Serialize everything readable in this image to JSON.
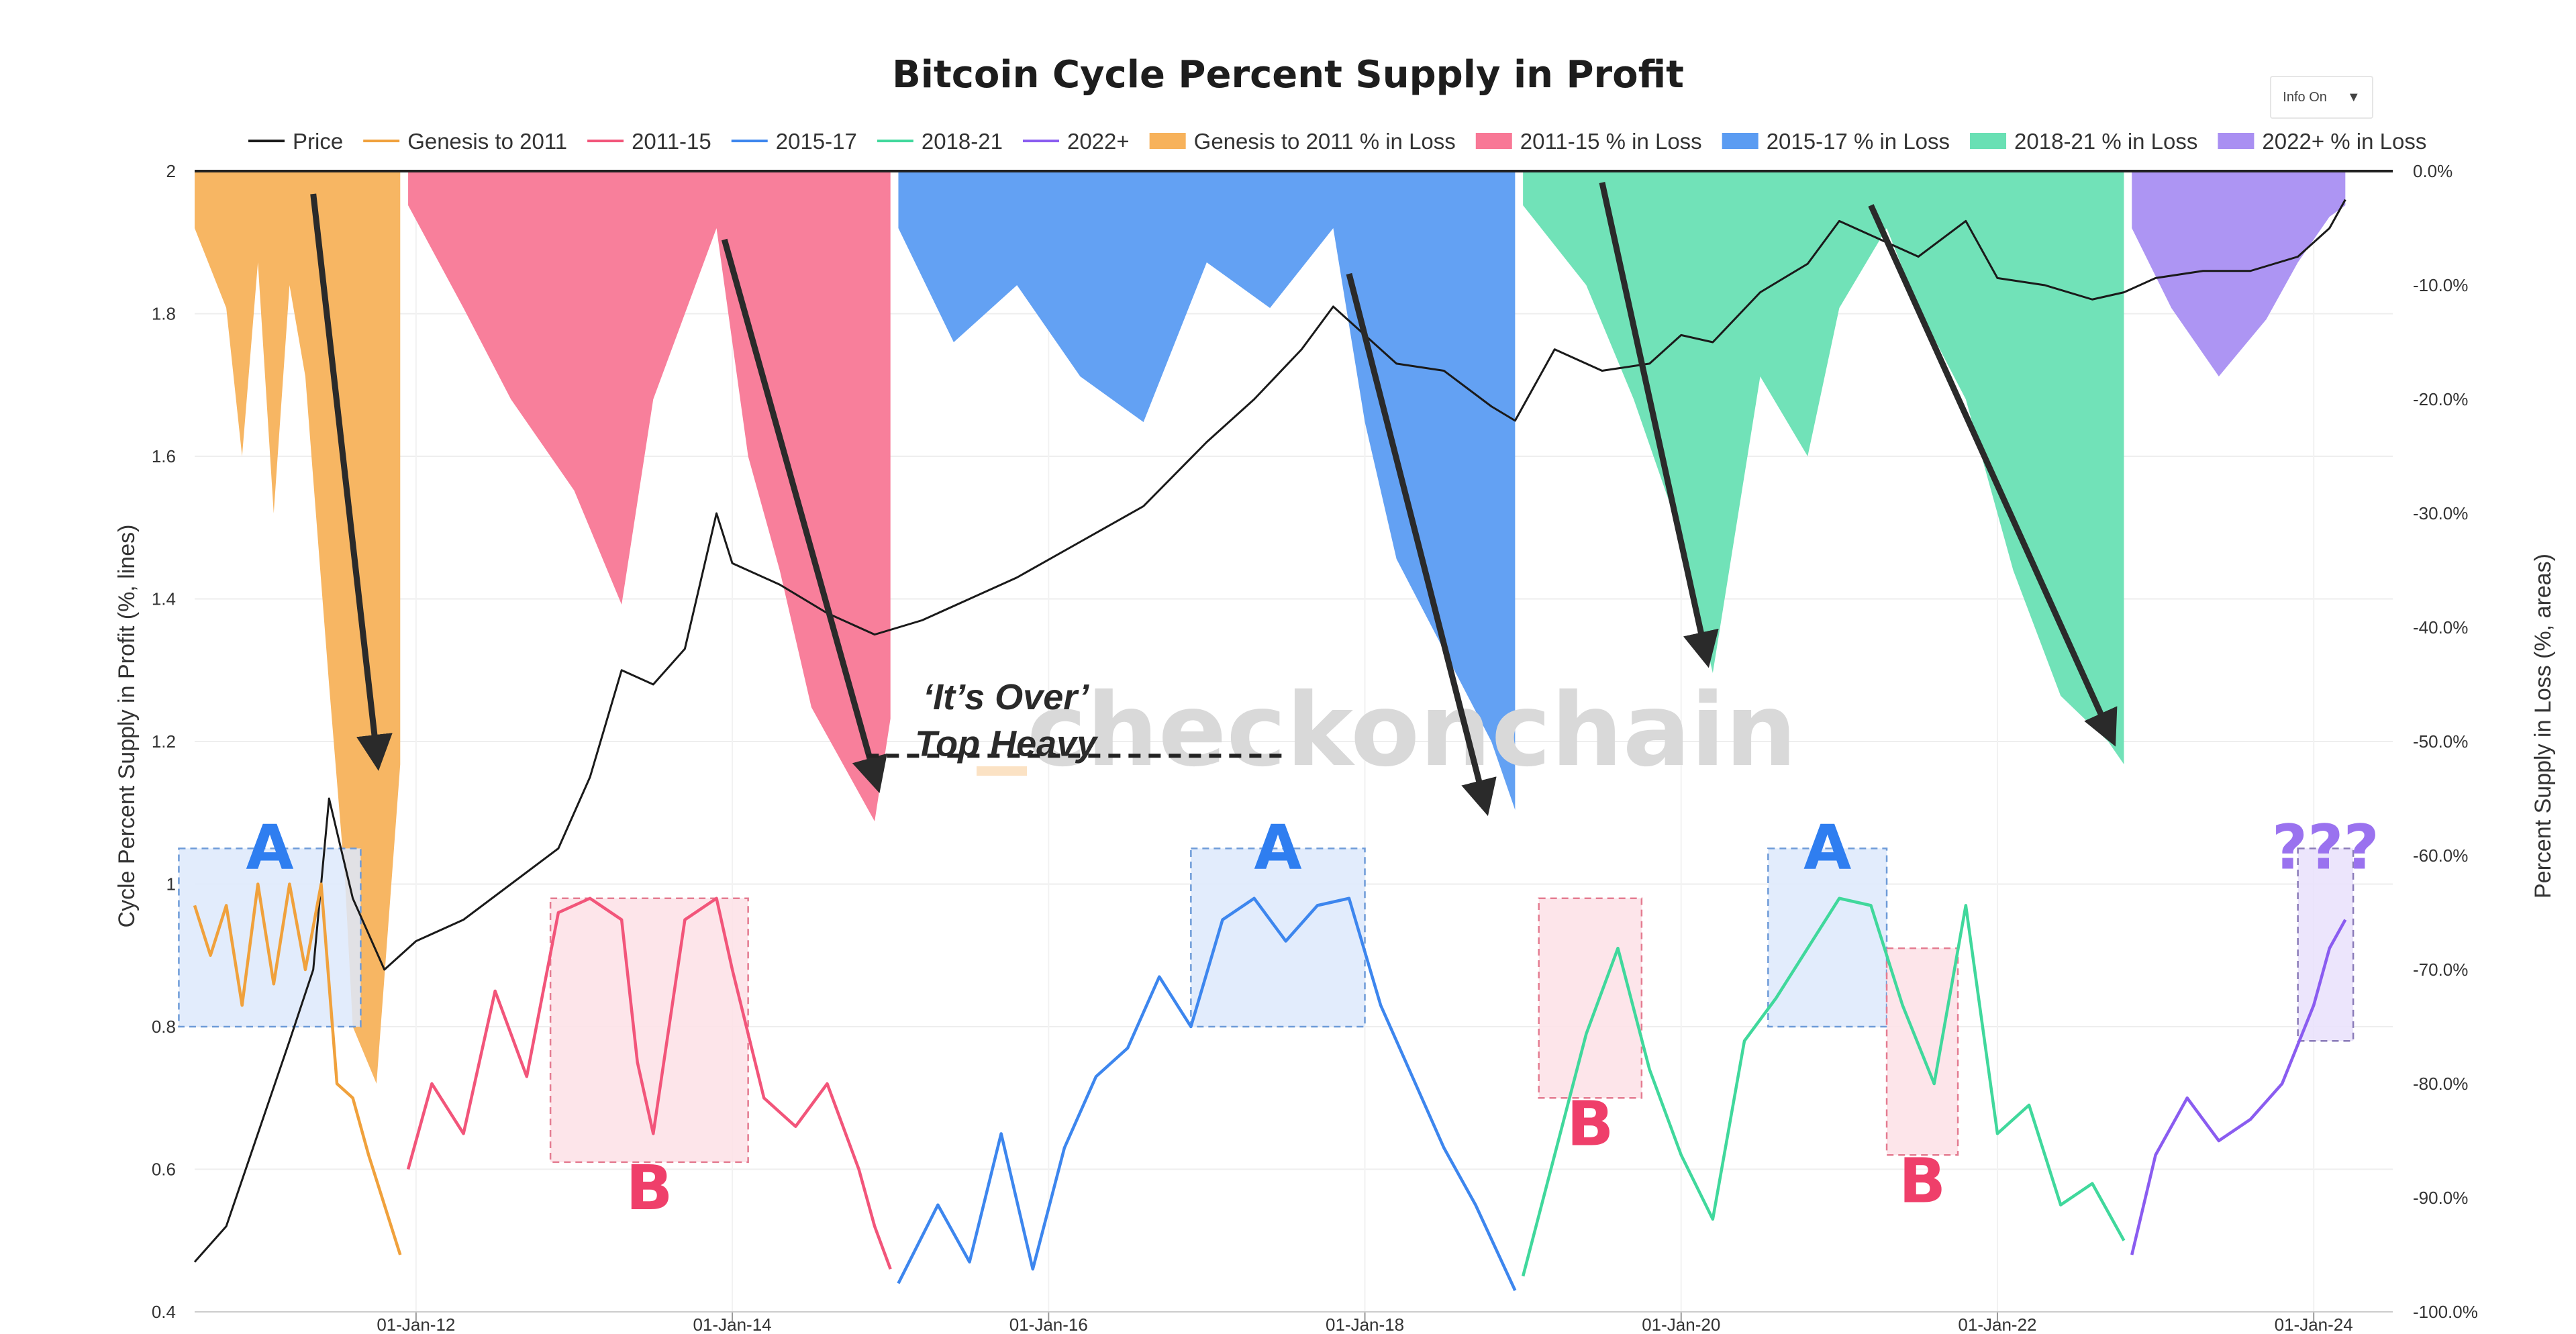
{
  "chart_data": {
    "type": "line",
    "title": "Bitcoin Cycle Percent Supply in Profit",
    "y_left_label": "Cycle Percent Supply in Profit (%, lines)",
    "y_right_label": "Percent Supply in Loss (%, areas)",
    "y_left_ticks": [
      "0.4",
      "0.6",
      "0.8",
      "1",
      "1.2",
      "1.4",
      "1.6",
      "1.8",
      "2"
    ],
    "y_right_ticks": [
      "0.0%",
      "-10.0%",
      "-20.0%",
      "-30.0%",
      "-40.0%",
      "-50.0%",
      "-60.0%",
      "-70.0%",
      "-80.0%",
      "-90.0%",
      "-100.0%"
    ],
    "x_ticks": [
      "01-Jan-12",
      "01-Jan-14",
      "01-Jan-16",
      "01-Jan-18",
      "01-Jan-20",
      "01-Jan-22",
      "01-Jan-24"
    ],
    "x_tick_years": [
      2012,
      2014,
      2016,
      2018,
      2020,
      2022,
      2024
    ],
    "x_range": [
      2010.6,
      2024.5
    ],
    "y_left_range": [
      0.4,
      2.0
    ],
    "y_right_range": [
      -100,
      0
    ],
    "grid": true,
    "legend_position": "top",
    "legend": [
      {
        "label": "Price",
        "type": "line",
        "color": "#1a1a1a"
      },
      {
        "label": "Genesis to 2011",
        "type": "line",
        "color": "#f0a13c"
      },
      {
        "label": "2011-15",
        "type": "line",
        "color": "#f2557a"
      },
      {
        "label": "2015-17",
        "type": "line",
        "color": "#3d86ee"
      },
      {
        "label": "2018-21",
        "type": "line",
        "color": "#40d89c"
      },
      {
        "label": "2022+",
        "type": "line",
        "color": "#8a5cf0"
      },
      {
        "label": "Genesis to 2011 % in Loss",
        "type": "area",
        "color": "#f7b25b"
      },
      {
        "label": "2011-15  % in Loss",
        "type": "area",
        "color": "#f87896"
      },
      {
        "label": "2015-17  % in Loss",
        "type": "area",
        "color": "#5b9cf2"
      },
      {
        "label": "2018-21  % in Loss",
        "type": "area",
        "color": "#69e0b4"
      },
      {
        "label": "2022+  % in Loss",
        "type": "area",
        "color": "#a98ff2"
      }
    ],
    "loss_areas": [
      {
        "name": "Genesis to 2011 % in Loss",
        "color": "#f7b25b",
        "x": [
          2010.6,
          2010.8,
          2010.9,
          2011.0,
          2011.1,
          2011.2,
          2011.3,
          2011.45,
          2011.55,
          2011.6,
          2011.75,
          2011.9
        ],
        "y": [
          -5,
          -12,
          -25,
          -8,
          -30,
          -10,
          -18,
          -45,
          -62,
          -75,
          -80,
          -52
        ]
      },
      {
        "name": "2011-15  % in Loss",
        "color": "#f87896",
        "x": [
          2011.95,
          2012.3,
          2012.6,
          2013.0,
          2013.3,
          2013.5,
          2013.9,
          2014.1,
          2014.3,
          2014.5,
          2014.7,
          2014.9,
          2015.0
        ],
        "y": [
          -3,
          -12,
          -20,
          -28,
          -38,
          -20,
          -5,
          -25,
          -35,
          -47,
          -52,
          -57,
          -48
        ]
      },
      {
        "name": "2015-17  % in Loss",
        "color": "#5b9cf2",
        "x": [
          2015.05,
          2015.4,
          2015.8,
          2016.2,
          2016.6,
          2017.0,
          2017.4,
          2017.8,
          2018.0,
          2018.2,
          2018.5,
          2018.8,
          2018.95
        ],
        "y": [
          -5,
          -15,
          -10,
          -18,
          -22,
          -8,
          -12,
          -5,
          -22,
          -34,
          -42,
          -50,
          -56
        ]
      },
      {
        "name": "2018-21  % in Loss",
        "color": "#69e0b4",
        "x": [
          2019.0,
          2019.4,
          2019.7,
          2020.0,
          2020.2,
          2020.5,
          2020.8,
          2021.0,
          2021.3,
          2021.5,
          2021.8,
          2022.1,
          2022.4,
          2022.7,
          2022.8
        ],
        "y": [
          -3,
          -10,
          -20,
          -32,
          -44,
          -18,
          -25,
          -12,
          -5,
          -12,
          -20,
          -35,
          -46,
          -50,
          -52
        ]
      },
      {
        "name": "2022+  % in Loss",
        "color": "#a98ff2",
        "x": [
          2022.85,
          2023.1,
          2023.4,
          2023.7,
          2023.9,
          2024.1,
          2024.2
        ],
        "y": [
          -5,
          -12,
          -18,
          -13,
          -8,
          -4,
          -3
        ]
      }
    ],
    "series": [
      {
        "name": "Price",
        "color": "#1a1a1a",
        "x": [
          2010.6,
          2010.8,
          2011.0,
          2011.2,
          2011.35,
          2011.45,
          2011.6,
          2011.8,
          2012.0,
          2012.3,
          2012.6,
          2012.9,
          2013.1,
          2013.3,
          2013.5,
          2013.7,
          2013.9,
          2014.0,
          2014.3,
          2014.6,
          2014.9,
          2015.2,
          2015.5,
          2015.8,
          2016.2,
          2016.6,
          2017.0,
          2017.3,
          2017.6,
          2017.8,
          2017.95,
          2018.2,
          2018.5,
          2018.8,
          2018.95,
          2019.2,
          2019.5,
          2019.8,
          2020.0,
          2020.2,
          2020.5,
          2020.8,
          2021.0,
          2021.2,
          2021.5,
          2021.8,
          2022.0,
          2022.3,
          2022.6,
          2022.8,
          2023.0,
          2023.3,
          2023.6,
          2023.9,
          2024.1,
          2024.2
        ],
        "y": [
          0.47,
          0.52,
          0.65,
          0.78,
          0.88,
          1.12,
          0.98,
          0.88,
          0.92,
          0.95,
          1.0,
          1.05,
          1.15,
          1.3,
          1.28,
          1.33,
          1.52,
          1.45,
          1.42,
          1.38,
          1.35,
          1.37,
          1.4,
          1.43,
          1.48,
          1.53,
          1.62,
          1.68,
          1.75,
          1.81,
          1.78,
          1.73,
          1.72,
          1.67,
          1.65,
          1.75,
          1.72,
          1.73,
          1.77,
          1.76,
          1.83,
          1.87,
          1.93,
          1.91,
          1.88,
          1.93,
          1.85,
          1.84,
          1.82,
          1.83,
          1.85,
          1.86,
          1.86,
          1.88,
          1.92,
          1.96
        ]
      },
      {
        "name": "Genesis to 2011",
        "color": "#f0a13c",
        "x": [
          2010.6,
          2010.7,
          2010.8,
          2010.9,
          2011.0,
          2011.1,
          2011.2,
          2011.3,
          2011.4,
          2011.5,
          2011.6,
          2011.7,
          2011.8,
          2011.9
        ],
        "y": [
          0.97,
          0.9,
          0.97,
          0.83,
          1.0,
          0.86,
          1.0,
          0.88,
          1.0,
          0.72,
          0.7,
          0.62,
          0.55,
          0.48
        ]
      },
      {
        "name": "2011-15",
        "color": "#f2557a",
        "x": [
          2011.95,
          2012.1,
          2012.3,
          2012.5,
          2012.7,
          2012.9,
          2013.1,
          2013.3,
          2013.4,
          2013.5,
          2013.7,
          2013.9,
          2014.0,
          2014.2,
          2014.4,
          2014.6,
          2014.8,
          2014.9,
          2015.0
        ],
        "y": [
          0.6,
          0.72,
          0.65,
          0.85,
          0.73,
          0.96,
          0.98,
          0.95,
          0.75,
          0.65,
          0.95,
          0.98,
          0.88,
          0.7,
          0.66,
          0.72,
          0.6,
          0.52,
          0.46
        ]
      },
      {
        "name": "2015-17",
        "color": "#3d86ee",
        "x": [
          2015.05,
          2015.3,
          2015.5,
          2015.7,
          2015.9,
          2016.1,
          2016.3,
          2016.5,
          2016.7,
          2016.9,
          2017.1,
          2017.3,
          2017.5,
          2017.7,
          2017.9,
          2018.1,
          2018.3,
          2018.5,
          2018.7,
          2018.95
        ],
        "y": [
          0.44,
          0.55,
          0.47,
          0.65,
          0.46,
          0.63,
          0.73,
          0.77,
          0.87,
          0.8,
          0.95,
          0.98,
          0.92,
          0.97,
          0.98,
          0.83,
          0.73,
          0.63,
          0.55,
          0.43
        ]
      },
      {
        "name": "2018-21",
        "color": "#40d89c",
        "x": [
          2019.0,
          2019.2,
          2019.4,
          2019.6,
          2019.8,
          2020.0,
          2020.2,
          2020.4,
          2020.6,
          2020.8,
          2021.0,
          2021.2,
          2021.4,
          2021.6,
          2021.8,
          2022.0,
          2022.2,
          2022.4,
          2022.6,
          2022.8
        ],
        "y": [
          0.45,
          0.62,
          0.79,
          0.91,
          0.74,
          0.62,
          0.53,
          0.78,
          0.84,
          0.91,
          0.98,
          0.97,
          0.83,
          0.72,
          0.97,
          0.65,
          0.69,
          0.55,
          0.58,
          0.5
        ]
      },
      {
        "name": "2022+",
        "color": "#8a5cf0",
        "x": [
          2022.85,
          2023.0,
          2023.2,
          2023.4,
          2023.6,
          2023.8,
          2024.0,
          2024.1,
          2024.2
        ],
        "y": [
          0.48,
          0.62,
          0.7,
          0.64,
          0.67,
          0.72,
          0.83,
          0.91,
          0.95
        ]
      }
    ],
    "annotations": {
      "arrows": [
        {
          "x": [
            2011.35,
            2011.75
          ],
          "y_right": [
            -2,
            -51
          ]
        },
        {
          "x": [
            2013.95,
            2014.9
          ],
          "y_right": [
            -6,
            -53
          ]
        },
        {
          "x": [
            2017.9,
            2018.75
          ],
          "y_right": [
            -9,
            -55
          ]
        },
        {
          "x": [
            2019.5,
            2020.15
          ],
          "y_right": [
            -1,
            -42
          ]
        },
        {
          "x": [
            2021.2,
            2022.7
          ],
          "y_right": [
            -3,
            -49
          ]
        }
      ],
      "dashed_line": {
        "x": [
          2014.85,
          2017.5
        ],
        "y_left": 1.18
      },
      "text_lines": [
        "‘It’s Over’",
        "Top Heavy"
      ],
      "text_position": {
        "x": 2015.73,
        "y_left": [
          1.245,
          1.18
        ]
      },
      "boxes": [
        {
          "label": "A",
          "x0": 2010.5,
          "x1": 2011.65,
          "y0": 0.8,
          "y1": 1.05,
          "color": "blue"
        },
        {
          "label": "B",
          "x0": 2012.85,
          "x1": 2014.1,
          "y0": 0.61,
          "y1": 0.98,
          "color": "pink"
        },
        {
          "label": "A",
          "x0": 2016.9,
          "x1": 2018.0,
          "y0": 0.8,
          "y1": 1.05,
          "color": "blue"
        },
        {
          "label": "B",
          "x0": 2019.1,
          "x1": 2019.75,
          "y0": 0.7,
          "y1": 0.98,
          "color": "pink"
        },
        {
          "label": "A",
          "x0": 2020.55,
          "x1": 2021.3,
          "y0": 0.8,
          "y1": 1.05,
          "color": "blue"
        },
        {
          "label": "B",
          "x0": 2021.3,
          "x1": 2021.75,
          "y0": 0.62,
          "y1": 0.91,
          "color": "pink"
        },
        {
          "label": "???",
          "x0": 2023.9,
          "x1": 2024.25,
          "y0": 0.78,
          "y1": 1.05,
          "color": "purple"
        }
      ],
      "watermark": "checkonchain"
    }
  },
  "controls": {
    "info_toggle": "Info On",
    "info_toggle_icon": "caret-down-icon"
  }
}
